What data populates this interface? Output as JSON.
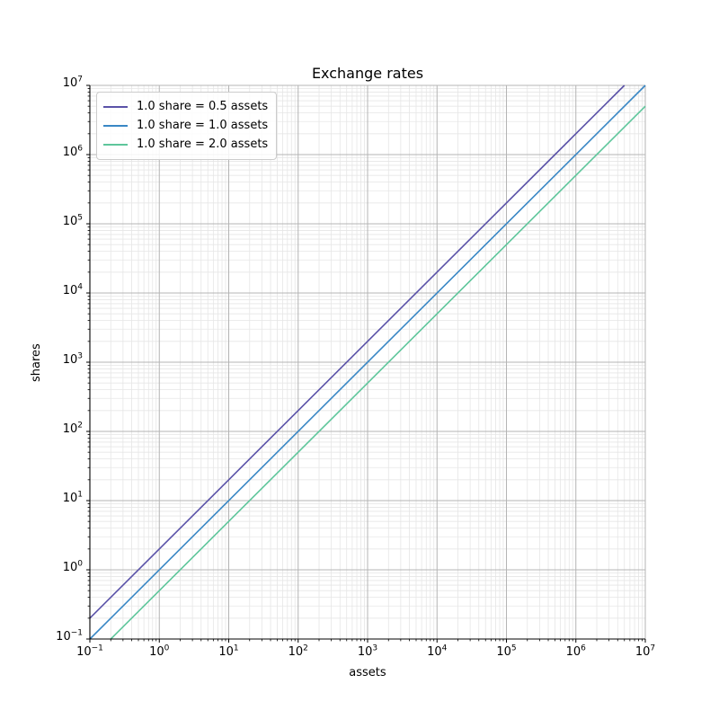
{
  "chart_data": {
    "type": "line",
    "title": "Exchange rates",
    "xlabel": "assets",
    "ylabel": "shares",
    "xscale": "log",
    "yscale": "log",
    "xlim": [
      0.1,
      10000000
    ],
    "ylim": [
      0.1,
      10000000
    ],
    "x_tick_exponents": [
      -1,
      0,
      1,
      2,
      3,
      4,
      5,
      6,
      7
    ],
    "y_tick_exponents": [
      -1,
      0,
      1,
      2,
      3,
      4,
      5,
      6,
      7
    ],
    "grid": {
      "which": "both",
      "major_color": "#b4b4b4",
      "minor_color": "#e6e6e6"
    },
    "legend_position": "upper left",
    "axis_color": "#000000",
    "series": [
      {
        "name": "1.0 share = 0.5 assets",
        "color": "#5a52a8",
        "points": [
          [
            0.1,
            0.2
          ],
          [
            5000000,
            10000000
          ]
        ]
      },
      {
        "name": "1.0 share = 1.0 assets",
        "color": "#3987c5",
        "points": [
          [
            0.1,
            0.1
          ],
          [
            10000000,
            10000000
          ]
        ]
      },
      {
        "name": "1.0 share = 2.0 assets",
        "color": "#5ec69b",
        "points": [
          [
            0.2,
            0.1
          ],
          [
            10000000,
            5000000
          ]
        ]
      }
    ]
  }
}
